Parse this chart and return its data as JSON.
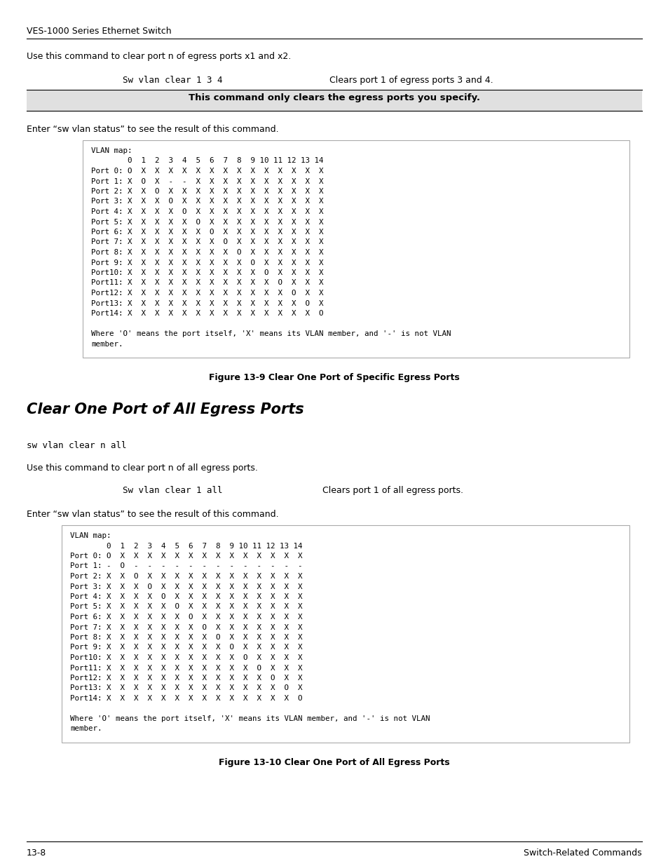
{
  "bg_color": "#ffffff",
  "header_text": "VES-1000 Series Ethernet Switch",
  "intro_text1": "Use this command to clear port n of egress ports x1 and x2.",
  "cmd_example1": "Sw vlan clear 1 3 4",
  "cmd_desc1": "Clears port 1 of egress ports 3 and 4.",
  "warning_text": "This command only clears the egress ports you specify.",
  "enter_text1": "Enter “sw vlan status” to see the result of this command.",
  "box1_content": "VLAN map:\n        0  1  2  3  4  5  6  7  8  9 10 11 12 13 14\nPort 0: O  X  X  X  X  X  X  X  X  X  X  X  X  X  X\nPort 1: X  O  X  -  -  X  X  X  X  X  X  X  X  X  X\nPort 2: X  X  O  X  X  X  X  X  X  X  X  X  X  X  X\nPort 3: X  X  X  O  X  X  X  X  X  X  X  X  X  X  X\nPort 4: X  X  X  X  O  X  X  X  X  X  X  X  X  X  X\nPort 5: X  X  X  X  X  O  X  X  X  X  X  X  X  X  X\nPort 6: X  X  X  X  X  X  O  X  X  X  X  X  X  X  X\nPort 7: X  X  X  X  X  X  X  O  X  X  X  X  X  X  X\nPort 8: X  X  X  X  X  X  X  X  O  X  X  X  X  X  X\nPort 9: X  X  X  X  X  X  X  X  X  O  X  X  X  X  X\nPort10: X  X  X  X  X  X  X  X  X  X  O  X  X  X  X\nPort11: X  X  X  X  X  X  X  X  X  X  X  O  X  X  X\nPort12: X  X  X  X  X  X  X  X  X  X  X  X  O  X  X\nPort13: X  X  X  X  X  X  X  X  X  X  X  X  X  O  X\nPort14: X  X  X  X  X  X  X  X  X  X  X  X  X  X  O\n\nWhere 'O' means the port itself, 'X' means its VLAN member, and '-' is not VLAN\nmember.",
  "fig1_caption": "Figure 13-9 Clear One Port of Specific Egress Ports",
  "section_title": "Clear One Port of All Egress Ports",
  "cmd_syntax": "sw vlan clear n all",
  "intro_text2": "Use this command to clear port n of all egress ports.",
  "cmd_example2": "Sw vlan clear 1 all",
  "cmd_desc2": "Clears port 1 of all egress ports.",
  "enter_text2": "Enter “sw vlan status” to see the result of this command.",
  "box2_content": "VLAN map:\n        0  1  2  3  4  5  6  7  8  9 10 11 12 13 14\nPort 0: O  X  X  X  X  X  X  X  X  X  X  X  X  X  X\nPort 1: -  O  -  -  -  -  -  -  -  -  -  -  -  -  -\nPort 2: X  X  O  X  X  X  X  X  X  X  X  X  X  X  X\nPort 3: X  X  X  O  X  X  X  X  X  X  X  X  X  X  X\nPort 4: X  X  X  X  O  X  X  X  X  X  X  X  X  X  X\nPort 5: X  X  X  X  X  O  X  X  X  X  X  X  X  X  X\nPort 6: X  X  X  X  X  X  O  X  X  X  X  X  X  X  X\nPort 7: X  X  X  X  X  X  X  O  X  X  X  X  X  X  X\nPort 8: X  X  X  X  X  X  X  X  O  X  X  X  X  X  X\nPort 9: X  X  X  X  X  X  X  X  X  O  X  X  X  X  X\nPort10: X  X  X  X  X  X  X  X  X  X  O  X  X  X  X\nPort11: X  X  X  X  X  X  X  X  X  X  X  O  X  X  X\nPort12: X  X  X  X  X  X  X  X  X  X  X  X  O  X  X\nPort13: X  X  X  X  X  X  X  X  X  X  X  X  X  O  X\nPort14: X  X  X  X  X  X  X  X  X  X  X  X  X  X  O\n\nWhere 'O' means the port itself, 'X' means its VLAN member, and '-' is not VLAN\nmember.",
  "fig2_caption": "Figure 13-10 Clear One Port of All Egress Ports",
  "footer_left": "13-8",
  "footer_right": "Switch-Related Commands"
}
